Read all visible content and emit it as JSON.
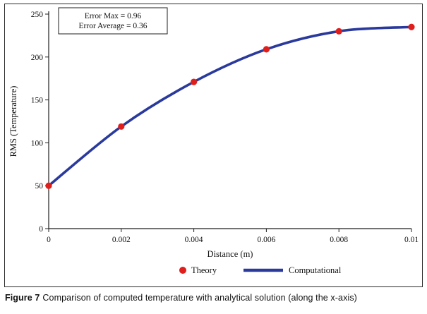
{
  "figure": {
    "caption_label": "Figure 7",
    "caption_text": "Comparison of computed temperature with analytical solution (along the x-axis)"
  },
  "chart_data": {
    "type": "line",
    "title": "",
    "xlabel": "Distance (m)",
    "ylabel": "RMS (Temperature)",
    "xlim": [
      0,
      0.01
    ],
    "ylim": [
      0,
      250
    ],
    "xticks": [
      0,
      0.002,
      0.004,
      0.006,
      0.008,
      0.01
    ],
    "xtick_labels": [
      "0",
      "0.002",
      "0.004",
      "0.006",
      "0.008",
      "0.01"
    ],
    "yticks": [
      0,
      50,
      100,
      150,
      200,
      250
    ],
    "ytick_labels": [
      "0",
      "50",
      "100",
      "150",
      "200",
      "250"
    ],
    "grid": false,
    "legend_position": "bottom",
    "annotation_box": {
      "lines": [
        "Error Max = 0.96",
        "Error Average = 0.36"
      ]
    },
    "x": [
      0,
      0.002,
      0.004,
      0.006,
      0.008,
      0.01
    ],
    "series": [
      {
        "name": "Theory",
        "style": "scatter",
        "marker": "circle",
        "color": "#df1f1c",
        "values": [
          50,
          119,
          171,
          209,
          230,
          235
        ]
      },
      {
        "name": "Computational",
        "style": "line",
        "color": "#2a3a9c",
        "values": [
          50,
          119,
          171,
          209,
          230,
          235
        ]
      }
    ],
    "colors": {
      "axis": "#1f1f1f",
      "annotation_border": "#1f1f1f",
      "text": "#111111"
    }
  }
}
